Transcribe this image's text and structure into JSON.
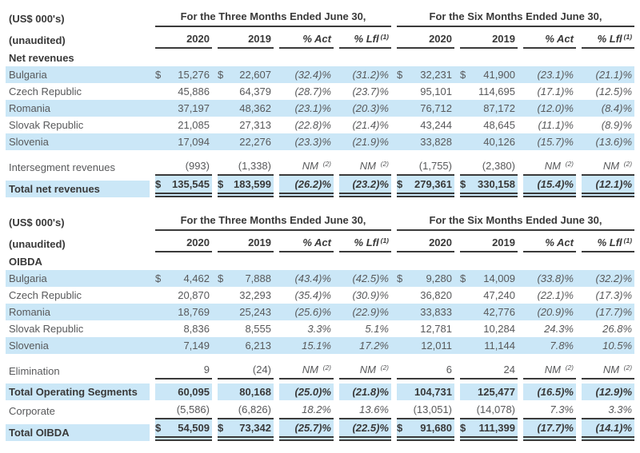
{
  "colors": {
    "row_highlight": "#cbe7f7",
    "body_text": "#58595b",
    "strong_text": "#393939",
    "rule_color": "#3a3a3a"
  },
  "header": {
    "units_label": "(US$ 000's)",
    "unaudited_label": "(unaudited)",
    "group_headers": [
      "For the Three Months Ended June 30,",
      "For the Six Months Ended June 30,"
    ],
    "column_headers": [
      "2020",
      "2019",
      "% Act",
      "% Lfl"
    ],
    "lfl_footnote_marker": "(1)",
    "nm_label": "NM",
    "nm_footnote_marker": "(2)"
  },
  "tables": [
    {
      "name": "net-revenues",
      "section_label": "Net revenues",
      "rows": [
        {
          "label": "Bulgaria",
          "shaded": true,
          "bold": false,
          "dollar": true,
          "segmented": false,
          "rule": "none",
          "gap_before": false,
          "values": [
            "15,276",
            "22,607",
            "(32.4)%",
            "(31.2)%",
            "32,231",
            "41,900",
            "(23.1)%",
            "(21.1)%"
          ]
        },
        {
          "label": "Czech Republic",
          "shaded": false,
          "bold": false,
          "dollar": false,
          "segmented": false,
          "rule": "none",
          "gap_before": false,
          "values": [
            "45,886",
            "64,379",
            "(28.7)%",
            "(23.7)%",
            "95,101",
            "114,695",
            "(17.1)%",
            "(12.5)%"
          ]
        },
        {
          "label": "Romania",
          "shaded": true,
          "bold": false,
          "dollar": false,
          "segmented": false,
          "rule": "none",
          "gap_before": false,
          "values": [
            "37,197",
            "48,362",
            "(23.1)%",
            "(20.3)%",
            "76,712",
            "87,172",
            "(12.0)%",
            "(8.4)%"
          ]
        },
        {
          "label": "Slovak Republic",
          "shaded": false,
          "bold": false,
          "dollar": false,
          "segmented": false,
          "rule": "none",
          "gap_before": false,
          "values": [
            "21,085",
            "27,313",
            "(22.8)%",
            "(21.4)%",
            "43,244",
            "48,645",
            "(11.1)%",
            "(8.9)%"
          ]
        },
        {
          "label": "Slovenia",
          "shaded": true,
          "bold": false,
          "dollar": false,
          "segmented": false,
          "rule": "none",
          "gap_before": false,
          "values": [
            "17,094",
            "22,276",
            "(23.3)%",
            "(21.9)%",
            "33,828",
            "40,126",
            "(15.7)%",
            "(13.6)%"
          ]
        },
        {
          "label": "Intersegment revenues",
          "shaded": false,
          "bold": false,
          "dollar": false,
          "segmented": false,
          "rule": "single",
          "gap_before": true,
          "values": [
            "(993)",
            "(1,338)",
            "NM",
            "NM",
            "(1,755)",
            "(2,380)",
            "NM",
            "NM"
          ]
        },
        {
          "label": "Total net revenues",
          "shaded": true,
          "bold": true,
          "dollar": true,
          "segmented": true,
          "rule": "double",
          "gap_before": false,
          "values": [
            "135,545",
            "183,599",
            "(26.2)%",
            "(23.2)%",
            "279,361",
            "330,158",
            "(15.4)%",
            "(12.1)%"
          ]
        }
      ]
    },
    {
      "name": "oibda",
      "section_label": "OIBDA",
      "rows": [
        {
          "label": "Bulgaria",
          "shaded": true,
          "bold": false,
          "dollar": true,
          "segmented": false,
          "rule": "none",
          "gap_before": false,
          "values": [
            "4,462",
            "7,888",
            "(43.4)%",
            "(42.5)%",
            "9,280",
            "14,009",
            "(33.8)%",
            "(32.2)%"
          ]
        },
        {
          "label": "Czech Republic",
          "shaded": false,
          "bold": false,
          "dollar": false,
          "segmented": false,
          "rule": "none",
          "gap_before": false,
          "values": [
            "20,870",
            "32,293",
            "(35.4)%",
            "(30.9)%",
            "36,820",
            "47,240",
            "(22.1)%",
            "(17.3)%"
          ]
        },
        {
          "label": "Romania",
          "shaded": true,
          "bold": false,
          "dollar": false,
          "segmented": false,
          "rule": "none",
          "gap_before": false,
          "values": [
            "18,769",
            "25,243",
            "(25.6)%",
            "(22.9)%",
            "33,833",
            "42,776",
            "(20.9)%",
            "(17.7)%"
          ]
        },
        {
          "label": "Slovak Republic",
          "shaded": false,
          "bold": false,
          "dollar": false,
          "segmented": false,
          "rule": "none",
          "gap_before": false,
          "values": [
            "8,836",
            "8,555",
            "3.3%",
            "5.1%",
            "12,781",
            "10,284",
            "24.3%",
            "26.8%"
          ]
        },
        {
          "label": "Slovenia",
          "shaded": true,
          "bold": false,
          "dollar": false,
          "segmented": false,
          "rule": "none",
          "gap_before": false,
          "values": [
            "7,149",
            "6,213",
            "15.1%",
            "17.2%",
            "12,011",
            "11,144",
            "7.8%",
            "10.5%"
          ]
        },
        {
          "label": "Elimination",
          "shaded": false,
          "bold": false,
          "dollar": false,
          "segmented": false,
          "rule": "single",
          "gap_before": true,
          "values": [
            "9",
            "(24)",
            "NM",
            "NM",
            "6",
            "24",
            "NM",
            "NM"
          ]
        },
        {
          "label": "Total Operating Segments",
          "shaded": true,
          "bold": true,
          "dollar": false,
          "segmented": true,
          "rule": "none",
          "gap_before": false,
          "values": [
            "60,095",
            "80,168",
            "(25.0)%",
            "(21.8)%",
            "104,731",
            "125,477",
            "(16.5)%",
            "(12.9)%"
          ]
        },
        {
          "label": "Corporate",
          "shaded": false,
          "bold": false,
          "dollar": false,
          "segmented": false,
          "rule": "single",
          "gap_before": false,
          "values": [
            "(5,586)",
            "(6,826)",
            "18.2%",
            "13.6%",
            "(13,051)",
            "(14,078)",
            "7.3%",
            "3.3%"
          ]
        },
        {
          "label": "Total OIBDA",
          "shaded": true,
          "bold": true,
          "dollar": true,
          "segmented": true,
          "rule": "double",
          "gap_before": false,
          "values": [
            "54,509",
            "73,342",
            "(25.7)%",
            "(22.5)%",
            "91,680",
            "111,399",
            "(17.7)%",
            "(14.1)%"
          ]
        }
      ]
    }
  ]
}
